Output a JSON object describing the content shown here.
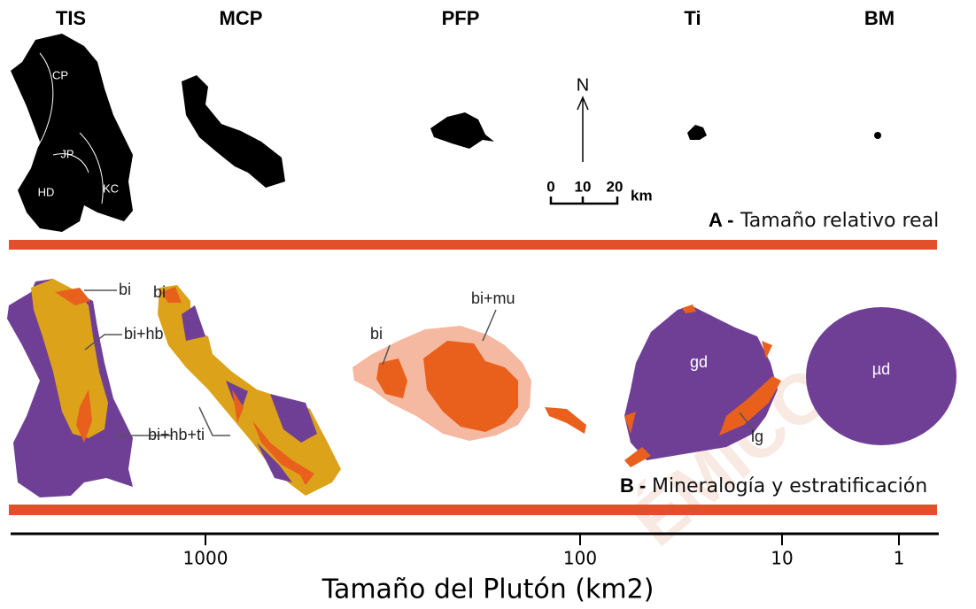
{
  "panel_a": {
    "plutons": [
      "TIS",
      "MCP",
      "PFP",
      "Ti",
      "BM"
    ],
    "zones": [
      "CP",
      "JP",
      "HD",
      "KC"
    ],
    "north": "N",
    "scale": {
      "ticks": [
        0,
        10,
        20
      ],
      "unit": "km"
    },
    "label": "A -",
    "caption": "Tamaño relativo real"
  },
  "panel_b": {
    "labels": [
      "bi",
      "bi+hb",
      "bi+hb+ti",
      "bi",
      "bi+mu",
      "bi",
      "gd",
      "lg",
      "µd"
    ],
    "label": "B -",
    "caption": "Mineralogía y estratificación"
  },
  "axis": {
    "ticks": [
      1000,
      100,
      10,
      1
    ],
    "title": "Tamaño del Plutón (km2)"
  },
  "watermark": "ÉMICO"
}
